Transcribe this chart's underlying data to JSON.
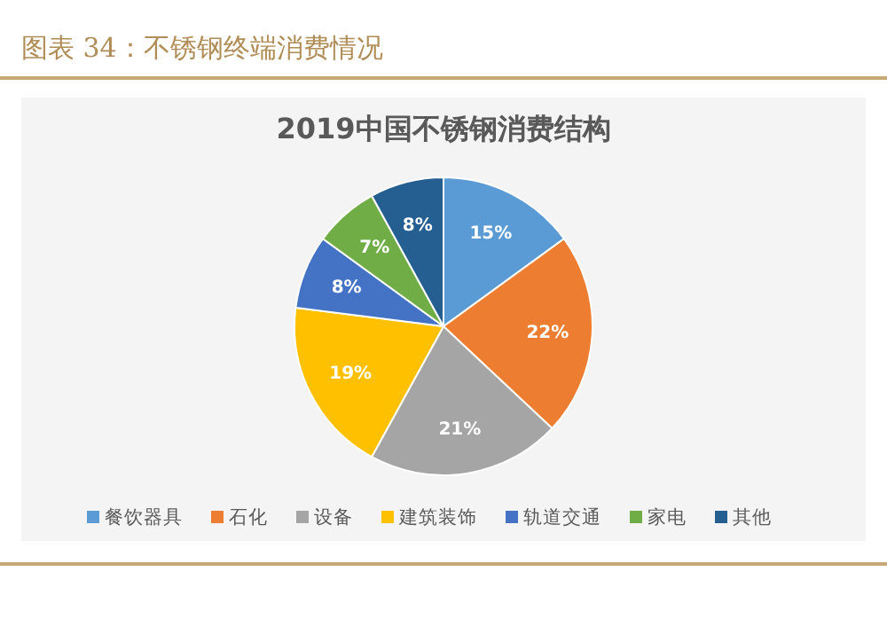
{
  "chart_data": {
    "type": "pie",
    "title": "图表 34：不锈钢终端消费情况",
    "subtitle": "2019中国不锈钢消费结构",
    "categories": [
      "餐饮器具",
      "石化",
      "设备",
      "建筑装饰",
      "轨道交通",
      "家电",
      "其他"
    ],
    "values": [
      15,
      22,
      21,
      19,
      8,
      7,
      8
    ],
    "colors": [
      "#5b9bd5",
      "#ed7d31",
      "#a5a5a5",
      "#ffc000",
      "#4472c4",
      "#70ad47",
      "#255e91"
    ],
    "value_labels": [
      "15%",
      "22%",
      "21%",
      "19%",
      "8%",
      "7%",
      "8%"
    ],
    "legend": "bottom"
  }
}
